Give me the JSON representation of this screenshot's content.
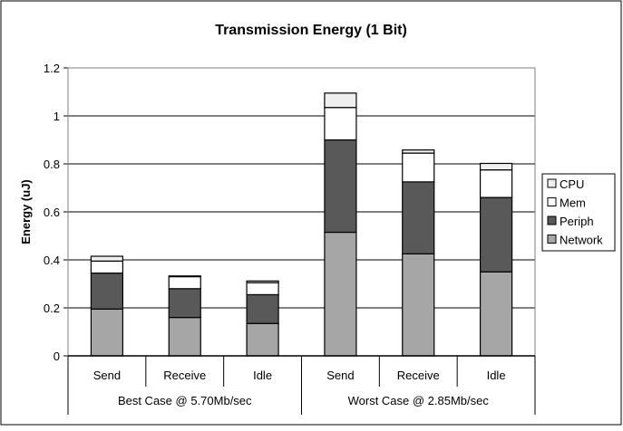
{
  "chart_data": {
    "type": "bar",
    "stacked": true,
    "title": "Transmission Energy (1 Bit)",
    "xlabel": "",
    "ylabel": "Energy (uJ)",
    "ylim": [
      0,
      1.2
    ],
    "yticks": [
      "0",
      "0.2",
      "0.4",
      "0.6",
      "0.8",
      "1",
      "1.2"
    ],
    "grid": true,
    "legend_position": "right",
    "groups": [
      {
        "label": "Best Case @ 5.70Mb/sec",
        "categories": [
          "Send",
          "Receive",
          "Idle"
        ]
      },
      {
        "label": "Worst Case @ 2.85Mb/sec",
        "categories": [
          "Send",
          "Receive",
          "Idle"
        ]
      }
    ],
    "categories": [
      "Send",
      "Receive",
      "Idle",
      "Send",
      "Receive",
      "Idle"
    ],
    "series": [
      {
        "name": "Network",
        "color": "#a6a6a6",
        "values": [
          0.195,
          0.16,
          0.135,
          0.515,
          0.425,
          0.35
        ]
      },
      {
        "name": "Periph",
        "color": "#595959",
        "values": [
          0.15,
          0.12,
          0.12,
          0.385,
          0.3,
          0.31
        ]
      },
      {
        "name": "Mem",
        "color": "#ffffff",
        "values": [
          0.05,
          0.05,
          0.05,
          0.135,
          0.12,
          0.115
        ]
      },
      {
        "name": "CPU",
        "color": "#efefef",
        "values": [
          0.02,
          0.003,
          0.007,
          0.06,
          0.013,
          0.027
        ]
      }
    ],
    "legend_order": [
      "CPU",
      "Mem",
      "Periph",
      "Network"
    ]
  }
}
